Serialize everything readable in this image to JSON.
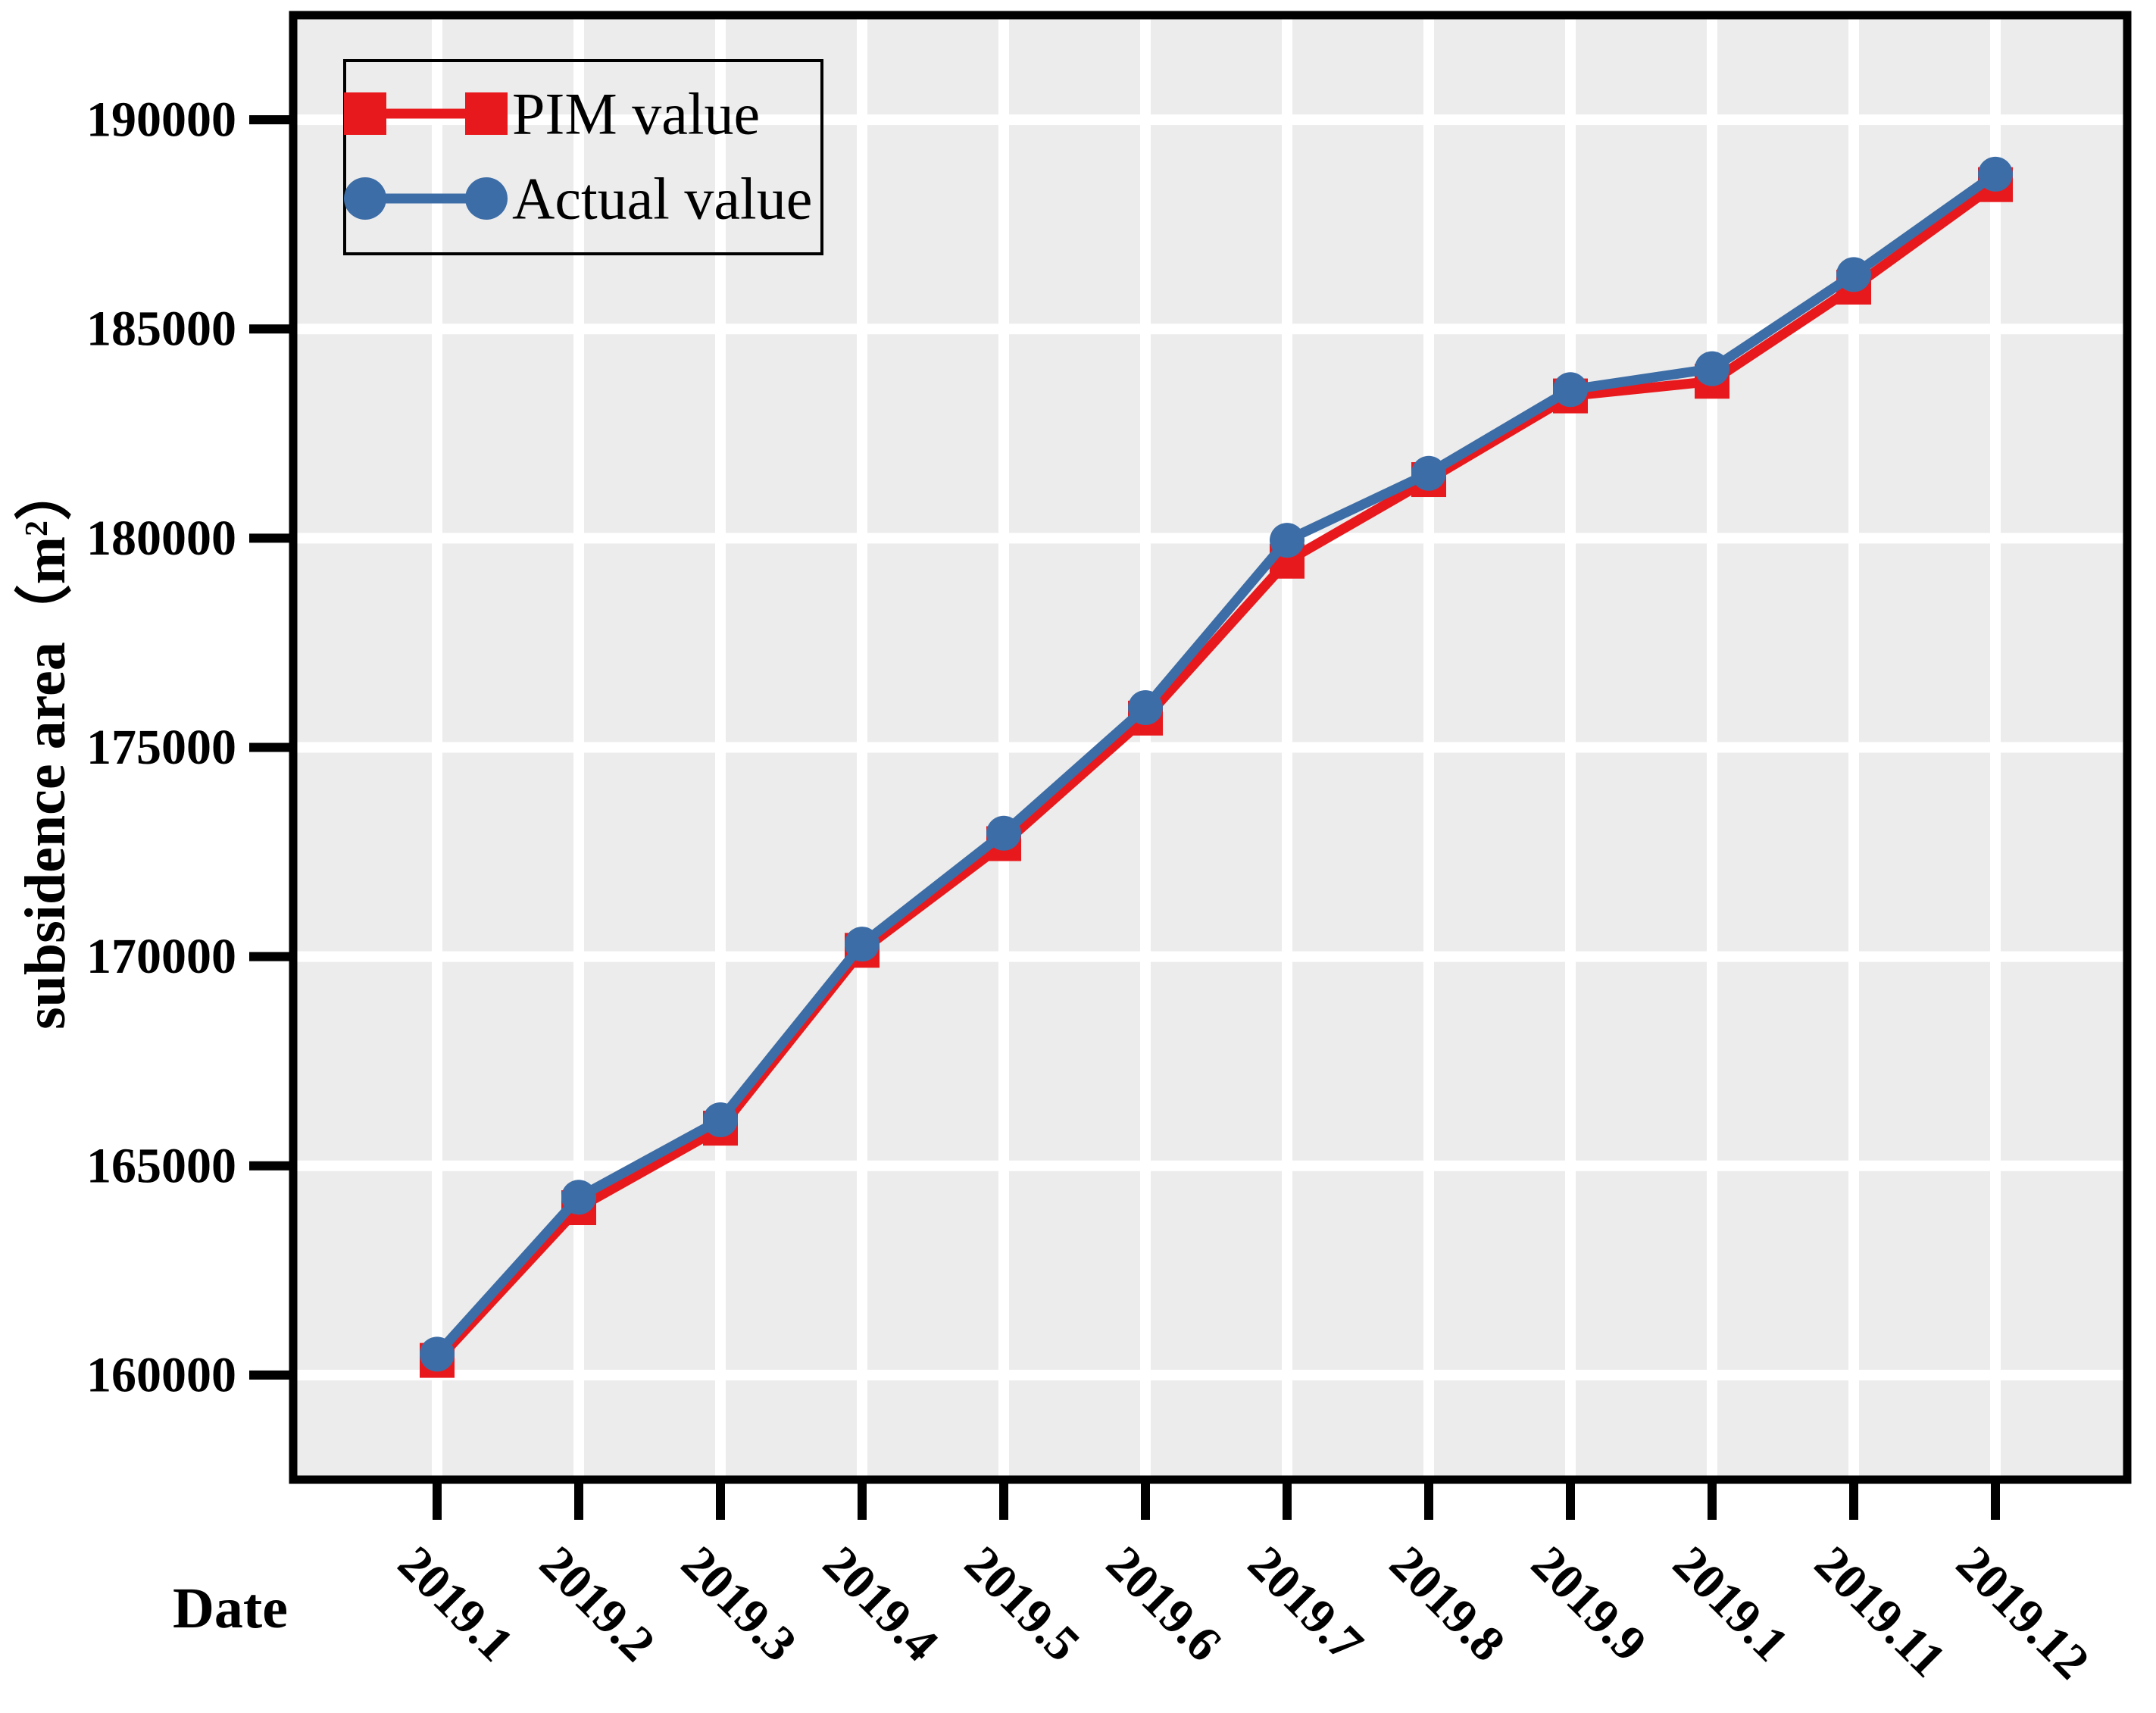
{
  "chart_data": {
    "type": "line",
    "title": "",
    "xlabel": "Date",
    "ylabel": "subsidence area（m²）",
    "ylabel_parts": {
      "prefix": "subsidence area（m",
      "sup": "2",
      "suffix": "）"
    },
    "categories": [
      "2019.1",
      "2019.2",
      "2019.3",
      "2019.4",
      "2019.5",
      "2019.6",
      "2019.7",
      "2019.8",
      "2019.9",
      "2019.1",
      "2019.11",
      "2019.12"
    ],
    "series": [
      {
        "name": "PIM value",
        "color": "#e8191d",
        "marker": "square",
        "values": [
          160350,
          164000,
          165900,
          170150,
          172700,
          175700,
          179450,
          181400,
          183400,
          183750,
          186000,
          188450
        ]
      },
      {
        "name": "Actual value",
        "color": "#3d6da6",
        "marker": "circle",
        "values": [
          160500,
          164250,
          166100,
          170300,
          172950,
          175950,
          179950,
          181550,
          183550,
          184050,
          186300,
          188700
        ]
      }
    ],
    "y_ticks": [
      160000,
      165000,
      170000,
      175000,
      180000,
      185000,
      190000
    ],
    "ylim": [
      157500,
      192500
    ],
    "grid": true,
    "grid_color": "#ffffff",
    "plot_bg": "#ececec",
    "frame_color": "#000000",
    "legend_position": "top-left"
  }
}
